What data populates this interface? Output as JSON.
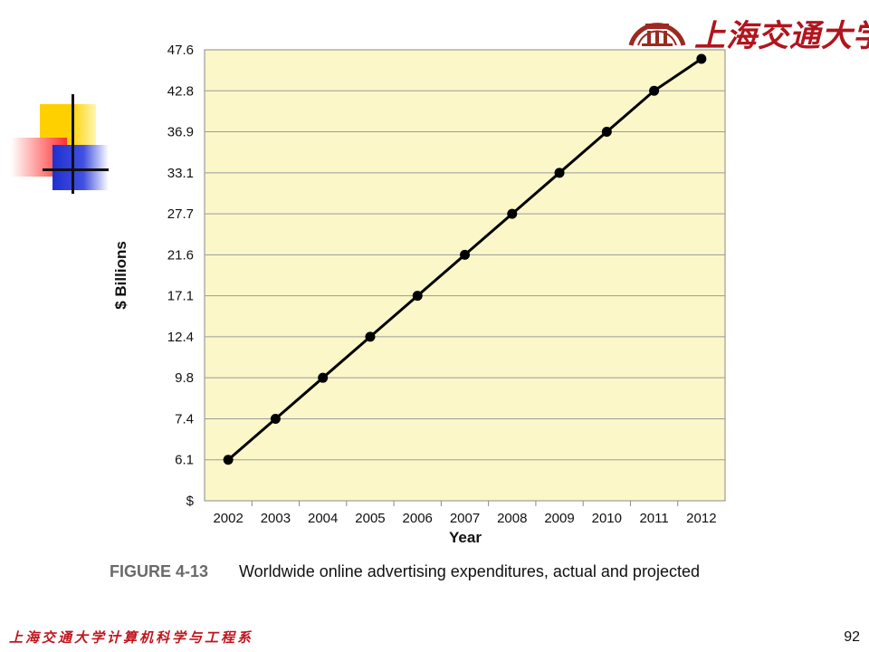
{
  "header": {
    "university_name": "上海交通大学"
  },
  "chart_data": {
    "type": "line",
    "title": "",
    "xlabel": "Year",
    "ylabel": "$ Billions",
    "categories": [
      "2002",
      "2003",
      "2004",
      "2005",
      "2006",
      "2007",
      "2008",
      "2009",
      "2010",
      "2011",
      "2012"
    ],
    "y_tick_labels": [
      "$",
      "6.1",
      "7.4",
      "9.8",
      "12.4",
      "17.1",
      "21.6",
      "27.7",
      "33.1",
      "36.9",
      "42.8",
      "47.6"
    ],
    "series": [
      {
        "name": "",
        "values": [
          6.1,
          7.4,
          9.8,
          12.4,
          17.1,
          21.6,
          27.7,
          33.1,
          36.9,
          42.8,
          47.6
        ]
      }
    ],
    "grid": true,
    "background": "#fcf7c8",
    "line_color": "#000000"
  },
  "caption": {
    "figure_number": "FIGURE 4-13",
    "text": "Worldwide online advertising expenditures, actual and projected"
  },
  "footer": {
    "department": "上海交通大学计算机科学与工程系",
    "page_number": "92"
  }
}
